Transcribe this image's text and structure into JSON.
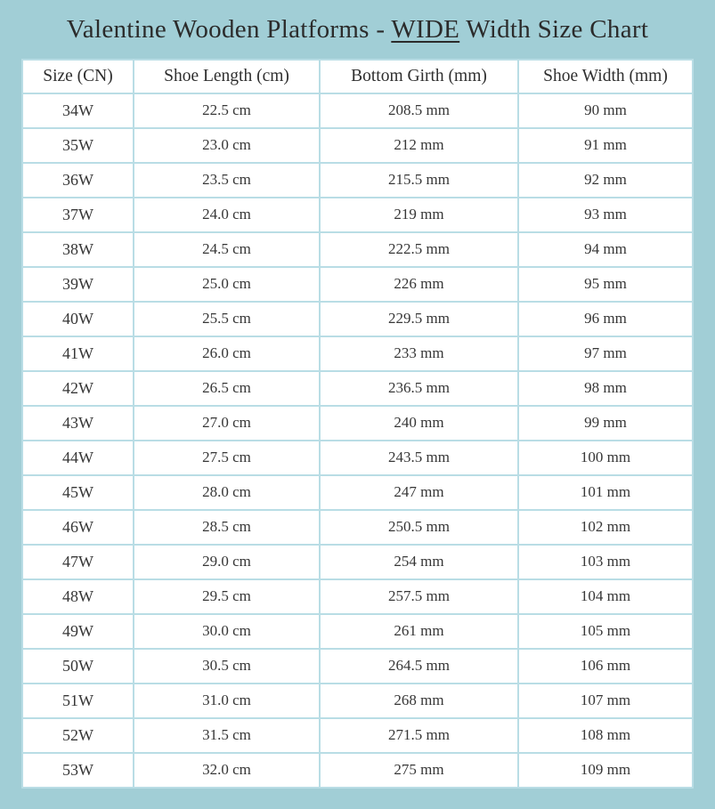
{
  "page": {
    "title": {
      "prefix": "Valentine Wooden Platforms - ",
      "underlined": "WIDE",
      "suffix": " Width Size Chart"
    }
  },
  "colors": {
    "page_background": "#a1ced6",
    "cell_background": "#ffffff",
    "grid_border": "#b9dde5",
    "text": "#363636"
  },
  "table": {
    "columns": [
      "Size (CN)",
      "Shoe Length (cm)",
      "Bottom Girth (mm)",
      "Shoe Width (mm)"
    ],
    "rows": [
      [
        "34W",
        "22.5 cm",
        "208.5 mm",
        "90 mm"
      ],
      [
        "35W",
        "23.0 cm",
        "212 mm",
        "91 mm"
      ],
      [
        "36W",
        "23.5 cm",
        "215.5 mm",
        "92 mm"
      ],
      [
        "37W",
        "24.0 cm",
        "219 mm",
        "93 mm"
      ],
      [
        "38W",
        "24.5 cm",
        "222.5 mm",
        "94 mm"
      ],
      [
        "39W",
        "25.0 cm",
        "226 mm",
        "95 mm"
      ],
      [
        "40W",
        "25.5 cm",
        "229.5 mm",
        "96 mm"
      ],
      [
        "41W",
        "26.0 cm",
        "233 mm",
        "97 mm"
      ],
      [
        "42W",
        "26.5 cm",
        "236.5 mm",
        "98 mm"
      ],
      [
        "43W",
        "27.0 cm",
        "240 mm",
        "99 mm"
      ],
      [
        "44W",
        "27.5 cm",
        "243.5 mm",
        "100 mm"
      ],
      [
        "45W",
        "28.0 cm",
        "247 mm",
        "101 mm"
      ],
      [
        "46W",
        "28.5 cm",
        "250.5 mm",
        "102 mm"
      ],
      [
        "47W",
        "29.0 cm",
        "254 mm",
        "103 mm"
      ],
      [
        "48W",
        "29.5 cm",
        "257.5 mm",
        "104 mm"
      ],
      [
        "49W",
        "30.0 cm",
        "261 mm",
        "105 mm"
      ],
      [
        "50W",
        "30.5 cm",
        "264.5 mm",
        "106 mm"
      ],
      [
        "51W",
        "31.0 cm",
        "268 mm",
        "107 mm"
      ],
      [
        "52W",
        "31.5 cm",
        "271.5 mm",
        "108 mm"
      ],
      [
        "53W",
        "32.0 cm",
        "275 mm",
        "109 mm"
      ]
    ]
  }
}
